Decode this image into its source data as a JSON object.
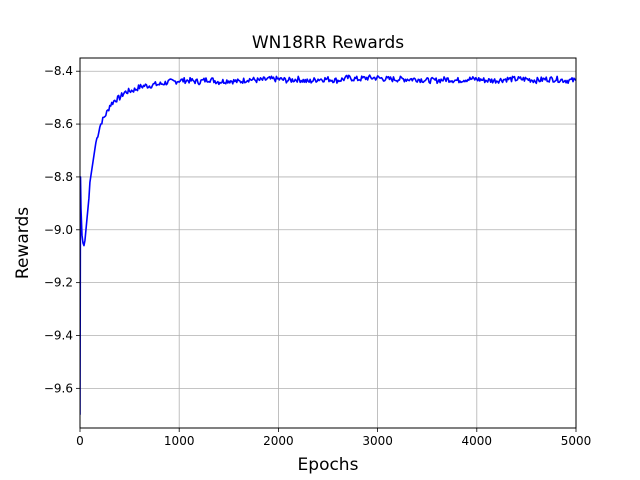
{
  "chart_data": {
    "type": "line",
    "title": "WN18RR Rewards",
    "xlabel": "Epochs",
    "ylabel": "Rewards",
    "xlim": [
      0,
      5000
    ],
    "ylim": [
      -9.75,
      -8.35
    ],
    "xticks": [
      0,
      1000,
      2000,
      3000,
      4000,
      5000
    ],
    "yticks": [
      -9.6,
      -9.4,
      -9.2,
      -9.0,
      -8.8,
      -8.6,
      -8.4
    ],
    "xtick_labels": [
      "0",
      "1000",
      "2000",
      "3000",
      "4000",
      "5000"
    ],
    "ytick_labels": [
      "−9.6",
      "−9.4",
      "−9.2",
      "−9.0",
      "−8.8",
      "−8.6",
      "−8.4"
    ],
    "grid": true,
    "series": [
      {
        "color": "#0000ff",
        "x": [
          0,
          5,
          10,
          20,
          30,
          40,
          50,
          60,
          70,
          80,
          90,
          100,
          120,
          140,
          160,
          180,
          200,
          220,
          250,
          280,
          300,
          350,
          400,
          450,
          500,
          550,
          600,
          650,
          700,
          750,
          800,
          850,
          900,
          950,
          1000,
          1100,
          1200,
          1300,
          1400,
          1500,
          1600,
          1700,
          1800,
          1900,
          2000,
          2100,
          2200,
          2300,
          2400,
          2500,
          2600,
          2700,
          2800,
          2900,
          3000,
          3100,
          3200,
          3300,
          3400,
          3500,
          3600,
          3700,
          3800,
          3900,
          4000,
          4100,
          4200,
          4300,
          4400,
          4500,
          4600,
          4700,
          4800,
          4900,
          5000
        ],
        "y": [
          -9.7,
          -8.8,
          -8.92,
          -9.02,
          -9.05,
          -9.06,
          -9.04,
          -9.0,
          -8.96,
          -8.92,
          -8.88,
          -8.82,
          -8.77,
          -8.72,
          -8.67,
          -8.64,
          -8.61,
          -8.59,
          -8.57,
          -8.55,
          -8.53,
          -8.51,
          -8.5,
          -8.48,
          -8.475,
          -8.47,
          -8.46,
          -8.455,
          -8.455,
          -8.45,
          -8.45,
          -8.445,
          -8.44,
          -8.44,
          -8.435,
          -8.435,
          -8.44,
          -8.43,
          -8.44,
          -8.435,
          -8.44,
          -8.43,
          -8.435,
          -8.43,
          -8.43,
          -8.435,
          -8.43,
          -8.44,
          -8.43,
          -8.43,
          -8.435,
          -8.425,
          -8.43,
          -8.425,
          -8.425,
          -8.43,
          -8.43,
          -8.43,
          -8.43,
          -8.435,
          -8.435,
          -8.43,
          -8.435,
          -8.43,
          -8.43,
          -8.435,
          -8.435,
          -8.43,
          -8.43,
          -8.43,
          -8.435,
          -8.43,
          -8.43,
          -8.435,
          -8.435
        ]
      }
    ]
  }
}
